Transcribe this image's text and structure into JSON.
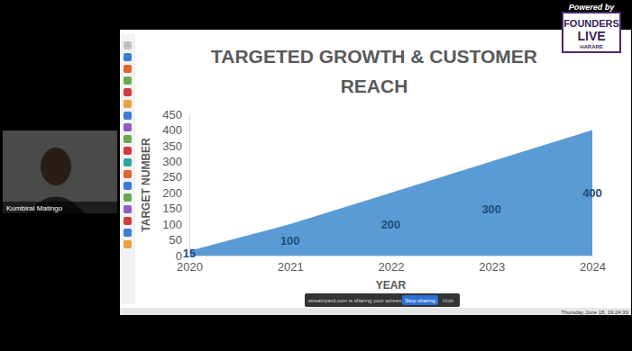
{
  "chart_data": {
    "type": "area",
    "title": "TARGETED GROWTH & CUSTOMER REACH",
    "x_label": "YEAR",
    "y_label": "TARGET NUMBER",
    "categories": [
      "2020",
      "2021",
      "2022",
      "2023",
      "2024"
    ],
    "values": [
      15,
      100,
      200,
      300,
      400
    ],
    "color": "#5b9bd5",
    "ylim": [
      0,
      450
    ],
    "yticks": [
      0,
      50,
      100,
      150,
      200,
      250,
      300,
      350,
      400,
      450
    ],
    "grid": false,
    "data_labels": true
  },
  "overlay": {
    "speaker": "Kumbirai Matingo",
    "powered_by": "Powered by",
    "logo": [
      "FOUNDERS",
      "LIVE",
      "HARARE"
    ],
    "share_notice": "streamyard.com is sharing your screen.",
    "stop_button": "Stop sharing",
    "hide_button": "Hide",
    "clock": "Thursday June 18, 19:24:39"
  }
}
